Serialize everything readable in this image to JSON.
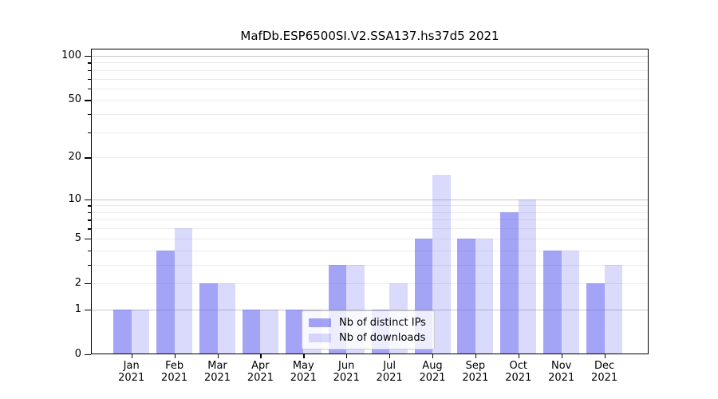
{
  "title": "MafDb.ESP6500SI.V2.SSA137.hs37d5 2021",
  "chart_data": {
    "type": "bar",
    "title": "MafDb.ESP6500SI.V2.SSA137.hs37d5 2021",
    "year_label": "2021",
    "categories": [
      "Jan",
      "Feb",
      "Mar",
      "Apr",
      "May",
      "Jun",
      "Jul",
      "Aug",
      "Sep",
      "Oct",
      "Nov",
      "Dec"
    ],
    "series": [
      {
        "name": "Nb of distinct IPs",
        "values": [
          1,
          4,
          2,
          1,
          1,
          3,
          1,
          5,
          5,
          8,
          4,
          2
        ],
        "color": "rgba(80,80,240,0.52)"
      },
      {
        "name": "Nb of downloads",
        "values": [
          1,
          6,
          2,
          1,
          1,
          3,
          2,
          15,
          5,
          10,
          4,
          3
        ],
        "color": "rgba(80,80,240,0.21)"
      }
    ],
    "xlabel": "",
    "ylabel": "",
    "yscale": "log10(value+1)",
    "ylim": [
      0,
      112
    ],
    "yticks": [
      0,
      1,
      2,
      5,
      10,
      20,
      50,
      100
    ],
    "ytick_labels": [
      "0",
      "1",
      "2",
      "5",
      "10",
      "20",
      "50",
      "100"
    ],
    "major_gridlines": [
      1,
      10,
      100
    ],
    "minor_gridlines": [
      2,
      3,
      4,
      5,
      6,
      7,
      8,
      9,
      20,
      30,
      40,
      50,
      60,
      70,
      80,
      90
    ],
    "grid": true,
    "legend": {
      "position": "lower-center",
      "entries": [
        "Nb of distinct IPs",
        "Nb of downloads"
      ]
    },
    "colors": {
      "bar_base": "rgb(80,80,240)",
      "grid_major": "#c8c8c8",
      "grid_minor": "#ebebeb",
      "spine": "#000000",
      "background": "#ffffff"
    }
  }
}
